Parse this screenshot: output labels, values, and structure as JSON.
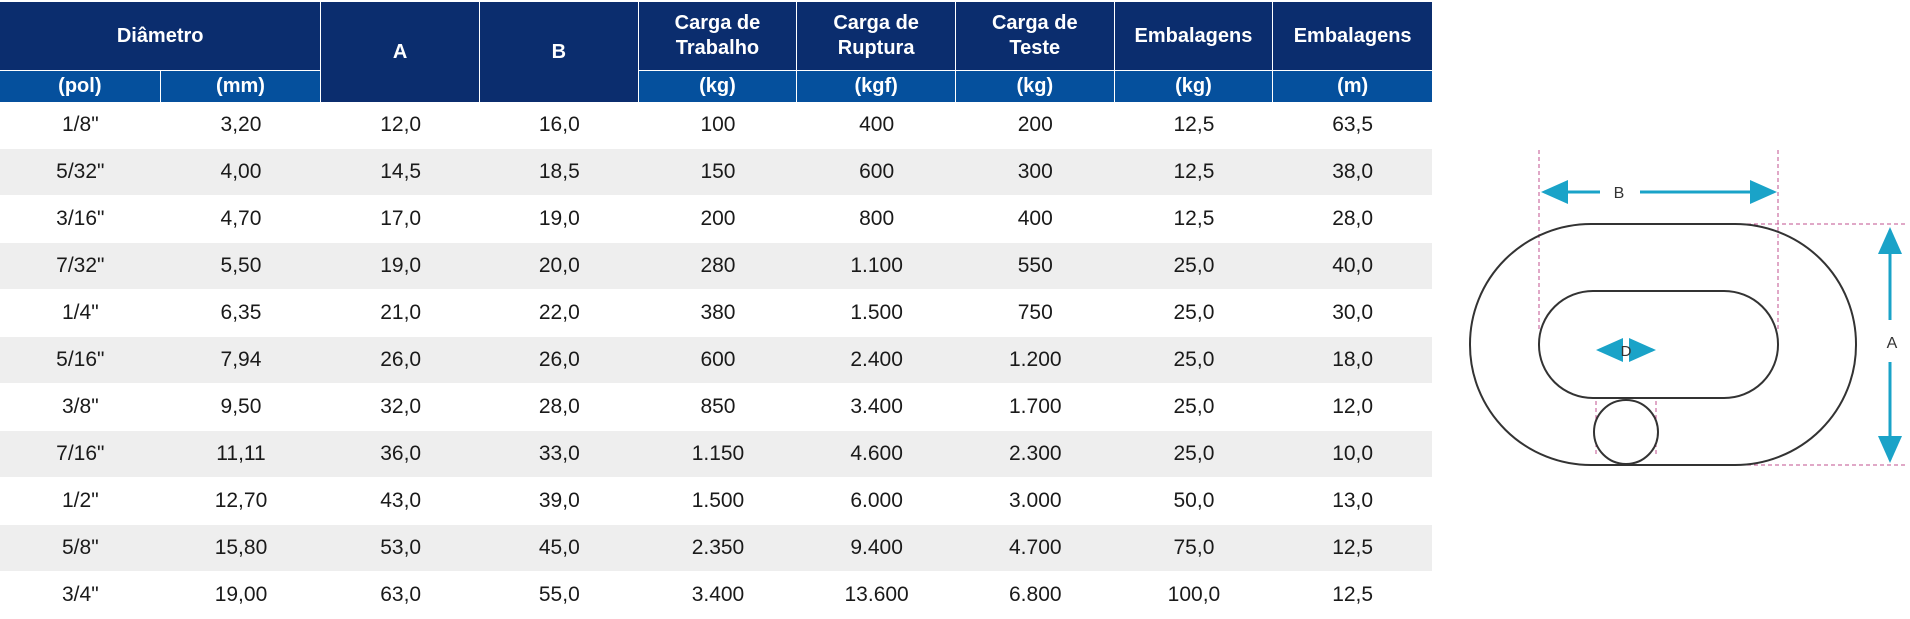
{
  "headers": {
    "diametro": "Diâmetro",
    "a": "A",
    "b": "B",
    "carga_trabalho": [
      "Carga de",
      "Trabalho"
    ],
    "carga_ruptura": [
      "Carga de",
      "Ruptura"
    ],
    "carga_teste": [
      "Carga de",
      "Teste"
    ],
    "embalagens_kg": "Embalagens",
    "embalagens_m": "Embalagens",
    "units": [
      "(pol)",
      "(mm)",
      "(kg)",
      "(kgf)",
      "(kg)",
      "(kg)",
      "(m)"
    ]
  },
  "rows": [
    [
      "1/8\"",
      "3,20",
      "12,0",
      "16,0",
      "100",
      "400",
      "200",
      "12,5",
      "63,5"
    ],
    [
      "5/32\"",
      "4,00",
      "14,5",
      "18,5",
      "150",
      "600",
      "300",
      "12,5",
      "38,0"
    ],
    [
      "3/16\"",
      "4,70",
      "17,0",
      "19,0",
      "200",
      "800",
      "400",
      "12,5",
      "28,0"
    ],
    [
      "7/32\"",
      "5,50",
      "19,0",
      "20,0",
      "280",
      "1.100",
      "550",
      "25,0",
      "40,0"
    ],
    [
      "1/4\"",
      "6,35",
      "21,0",
      "22,0",
      "380",
      "1.500",
      "750",
      "25,0",
      "30,0"
    ],
    [
      "5/16\"",
      "7,94",
      "26,0",
      "26,0",
      "600",
      "2.400",
      "1.200",
      "25,0",
      "18,0"
    ],
    [
      "3/8\"",
      "9,50",
      "32,0",
      "28,0",
      "850",
      "3.400",
      "1.700",
      "25,0",
      "12,0"
    ],
    [
      "7/16\"",
      "11,11",
      "36,0",
      "33,0",
      "1.150",
      "4.600",
      "2.300",
      "25,0",
      "10,0"
    ],
    [
      "1/2\"",
      "12,70",
      "43,0",
      "39,0",
      "1.500",
      "6.000",
      "3.000",
      "50,0",
      "13,0"
    ],
    [
      "5/8\"",
      "15,80",
      "53,0",
      "45,0",
      "2.350",
      "9.400",
      "4.700",
      "75,0",
      "12,5"
    ],
    [
      "3/4\"",
      "19,00",
      "63,0",
      "55,0",
      "3.400",
      "13.600",
      "6.800",
      "100,0",
      "12,5"
    ]
  ],
  "diagram": {
    "label_b": "B",
    "label_a": "A",
    "label_d": "D"
  },
  "colors": {
    "header_dark": "#0b2d6e",
    "header_units": "#05509d",
    "row_alt": "#eeeeee",
    "dimension_arrow": "#1aa3c8",
    "guide_line": "#c0508f"
  }
}
